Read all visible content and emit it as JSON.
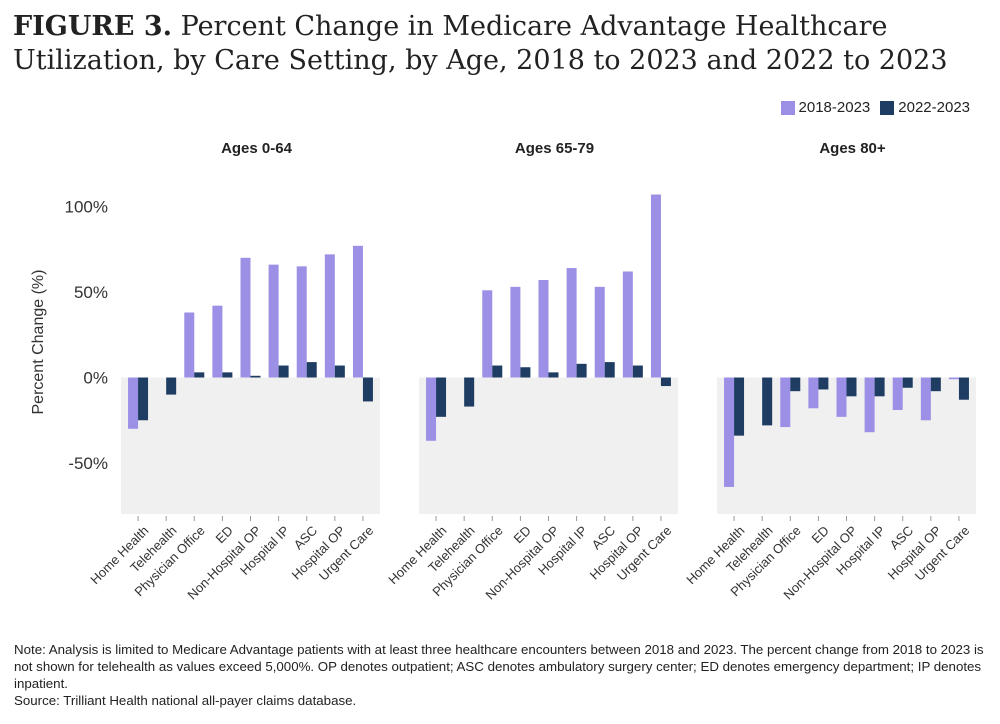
{
  "title": {
    "label": "FIGURE 3.",
    "text": "Percent Change in Medicare Advantage Healthcare Utilization, by Care Setting, by Age, 2018 to 2023 and 2022 to 2023"
  },
  "legend": [
    {
      "name": "2018-2023",
      "color": "#9b8fe6"
    },
    {
      "name": "2022-2023",
      "color": "#1f3d63"
    }
  ],
  "chart_data": {
    "type": "bar",
    "ylabel": "Percent Change (%)",
    "ylim": [
      -80,
      120
    ],
    "yticks": [
      -50,
      0,
      50,
      100
    ],
    "ytick_labels": [
      "-50%",
      "0%",
      "50%",
      "100%"
    ],
    "categories": [
      "Home Health",
      "Telehealth",
      "Physician Office",
      "ED",
      "Non-Hospital OP",
      "Hospital IP",
      "ASC",
      "Hospital OP",
      "Urgent Care"
    ],
    "panels": [
      {
        "title": "Ages 0-64",
        "series": [
          {
            "name": "2018-2023",
            "values": [
              -30,
              null,
              38,
              42,
              70,
              66,
              65,
              72,
              77
            ]
          },
          {
            "name": "2022-2023",
            "values": [
              -25,
              -10,
              3,
              3,
              1,
              7,
              9,
              7,
              -14
            ]
          }
        ]
      },
      {
        "title": "Ages 65-79",
        "series": [
          {
            "name": "2018-2023",
            "values": [
              -37,
              null,
              51,
              53,
              57,
              64,
              53,
              62,
              107
            ]
          },
          {
            "name": "2022-2023",
            "values": [
              -23,
              -17,
              7,
              6,
              3,
              8,
              9,
              7,
              -5
            ]
          }
        ]
      },
      {
        "title": "Ages 80+",
        "series": [
          {
            "name": "2018-2023",
            "values": [
              -64,
              null,
              -29,
              -18,
              -23,
              -32,
              -19,
              -25,
              -1
            ]
          },
          {
            "name": "2022-2023",
            "values": [
              -34,
              -28,
              -8,
              -7,
              -11,
              -11,
              -6,
              -8,
              -13
            ]
          }
        ]
      }
    ]
  },
  "note": {
    "text": "Note: Analysis is limited to Medicare Advantage patients with at least three healthcare encounters between 2018 and 2023. The percent change from 2018 to 2023 is not shown for telehealth as values exceed 5,000%. OP denotes outpatient; ASC denotes ambulatory surgery center; ED denotes emergency department; IP denotes inpatient.",
    "source": "Source: Trilliant Health national all-payer claims database."
  }
}
